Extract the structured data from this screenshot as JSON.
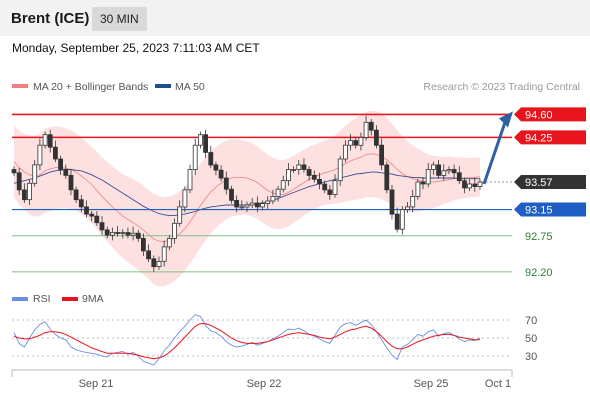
{
  "header": {
    "instrument": "Brent (ICE)",
    "timeframe": "30 MIN"
  },
  "datetime": "Monday, September 25, 2023 7:11:03 AM CET",
  "copyright": "Research © 2023 Trading Central",
  "colors": {
    "resistance": "#e8141b",
    "support": "#1f5fc4",
    "target": "#7fc07f",
    "candle_up": "#ffffff",
    "candle_down": "#333333",
    "band_fill": "#fddcdc",
    "ma20": "#f08080",
    "ma50": "#3b4a8c",
    "rsi": "#6a8fe0",
    "rsi_ma": "#e8141b",
    "arrow": "#2f5fa5",
    "current": "#333333"
  },
  "chart_data": [
    {
      "type": "candlestick",
      "title": "Brent (ICE) 30 MIN",
      "legend": [
        {
          "name": "MA 20 + Bollinger Bands",
          "color": "#f08080"
        },
        {
          "name": "MA 50",
          "color": "#1f4f8f"
        }
      ],
      "x_ticks": [
        "Sep 21",
        "Sep 22",
        "Sep 25",
        "Oct 1"
      ],
      "ylim": [
        92.0,
        94.85
      ],
      "levels": [
        {
          "value": 94.6,
          "label": "94.60",
          "kind": "resistance"
        },
        {
          "value": 94.25,
          "label": "94.25",
          "kind": "resistance"
        },
        {
          "value": 93.57,
          "label": "93.57",
          "kind": "current"
        },
        {
          "value": 93.15,
          "label": "93.15",
          "kind": "support"
        },
        {
          "value": 92.75,
          "label": "92.75",
          "kind": "target"
        },
        {
          "value": 92.2,
          "label": "92.20",
          "kind": "target"
        }
      ],
      "close": [
        93.71,
        93.45,
        93.3,
        93.55,
        93.83,
        94.13,
        94.29,
        94.1,
        93.92,
        93.76,
        93.67,
        93.45,
        93.3,
        93.19,
        93.08,
        93.05,
        92.95,
        92.84,
        92.76,
        92.8,
        92.79,
        92.8,
        92.76,
        92.79,
        92.71,
        92.52,
        92.4,
        92.28,
        92.36,
        92.58,
        92.71,
        92.94,
        93.19,
        93.45,
        93.76,
        94.13,
        94.29,
        94.02,
        93.83,
        93.75,
        93.63,
        93.46,
        93.29,
        93.19,
        93.19,
        93.22,
        93.25,
        93.19,
        93.24,
        93.28,
        93.35,
        93.46,
        93.59,
        93.76,
        93.76,
        93.83,
        93.76,
        93.67,
        93.61,
        93.54,
        93.45,
        93.38,
        93.59,
        93.92,
        94.13,
        94.2,
        94.13,
        94.25,
        94.48,
        94.36,
        94.13,
        93.83,
        93.45,
        93.08,
        92.85,
        93.15,
        93.19,
        93.35,
        93.57,
        93.54,
        93.76,
        93.83,
        93.67,
        93.74,
        93.76,
        93.71,
        93.59,
        93.48,
        93.54,
        93.5,
        93.57
      ],
      "ma20": [
        93.88,
        93.79,
        93.72,
        93.68,
        93.66,
        93.68,
        93.74,
        93.77,
        93.79,
        93.79,
        93.78,
        93.76,
        93.72,
        93.66,
        93.6,
        93.53,
        93.44,
        93.35,
        93.27,
        93.19,
        93.12,
        93.05,
        93.0,
        92.95,
        92.9,
        92.84,
        92.77,
        92.7,
        92.67,
        92.66,
        92.68,
        92.72,
        92.78,
        92.86,
        92.96,
        93.08,
        93.21,
        93.32,
        93.42,
        93.49,
        93.55,
        93.6,
        93.63,
        93.64,
        93.64,
        93.63,
        93.6,
        93.56,
        93.5,
        93.44,
        93.4,
        93.38,
        93.38,
        93.41,
        93.46,
        93.51,
        93.56,
        93.61,
        93.65,
        93.68,
        93.71,
        93.73,
        93.76,
        93.8,
        93.85,
        93.89,
        93.92,
        93.95,
        93.99,
        94.0,
        93.99,
        93.96,
        93.91,
        93.84,
        93.76,
        93.7,
        93.65,
        93.62,
        93.6,
        93.58,
        93.57,
        93.57,
        93.58,
        93.59,
        93.61,
        93.62,
        93.63,
        93.63,
        93.64,
        93.64,
        93.65
      ],
      "ma50": [
        93.55,
        93.57,
        93.59,
        93.61,
        93.63,
        93.66,
        93.69,
        93.72,
        93.74,
        93.75,
        93.76,
        93.76,
        93.75,
        93.74,
        93.71,
        93.68,
        93.64,
        93.6,
        93.55,
        93.5,
        93.45,
        93.4,
        93.35,
        93.3,
        93.25,
        93.2,
        93.16,
        93.12,
        93.09,
        93.07,
        93.06,
        93.06,
        93.07,
        93.08,
        93.1,
        93.12,
        93.15,
        93.17,
        93.19,
        93.2,
        93.21,
        93.22,
        93.22,
        93.22,
        93.22,
        93.22,
        93.23,
        93.24,
        93.25,
        93.27,
        93.29,
        93.32,
        93.35,
        93.38,
        93.41,
        93.44,
        93.47,
        93.5,
        93.52,
        93.55,
        93.57,
        93.59,
        93.61,
        93.63,
        93.65,
        93.67,
        93.69,
        93.7,
        93.71,
        93.72,
        93.72,
        93.71,
        93.7,
        93.69,
        93.67,
        93.66,
        93.65,
        93.64,
        93.64,
        93.63,
        93.63,
        93.63,
        93.63,
        93.63,
        93.63,
        93.63,
        93.62,
        93.62,
        93.62,
        93.62,
        93.62
      ],
      "band_half_width": [
        0.55,
        0.56,
        0.58,
        0.6,
        0.62,
        0.63,
        0.64,
        0.64,
        0.63,
        0.62,
        0.61,
        0.6,
        0.59,
        0.58,
        0.58,
        0.58,
        0.59,
        0.6,
        0.61,
        0.62,
        0.63,
        0.64,
        0.65,
        0.66,
        0.67,
        0.68,
        0.68,
        0.69,
        0.69,
        0.68,
        0.67,
        0.66,
        0.65,
        0.64,
        0.64,
        0.64,
        0.64,
        0.64,
        0.63,
        0.62,
        0.61,
        0.6,
        0.59,
        0.58,
        0.57,
        0.56,
        0.56,
        0.55,
        0.55,
        0.54,
        0.54,
        0.53,
        0.52,
        0.52,
        0.51,
        0.51,
        0.5,
        0.5,
        0.49,
        0.49,
        0.49,
        0.5,
        0.52,
        0.55,
        0.58,
        0.6,
        0.62,
        0.64,
        0.65,
        0.66,
        0.66,
        0.65,
        0.64,
        0.62,
        0.6,
        0.57,
        0.54,
        0.51,
        0.48,
        0.45,
        0.42,
        0.4,
        0.38,
        0.36,
        0.35,
        0.33,
        0.32,
        0.31,
        0.3,
        0.3,
        0.3
      ],
      "forecast_arrow": {
        "from": 93.57,
        "to": 94.6
      }
    },
    {
      "type": "line",
      "legend": [
        {
          "name": "RSI",
          "color": "#6a8fe0"
        },
        {
          "name": "9MA",
          "color": "#e8141b"
        }
      ],
      "y_ticks": [
        70,
        50,
        30
      ],
      "ylim": [
        20,
        80
      ],
      "rsi": [
        56,
        44,
        40,
        50,
        59,
        65,
        68,
        60,
        54,
        50,
        48,
        40,
        37,
        35,
        34,
        33,
        32,
        30,
        29,
        33,
        34,
        35,
        32,
        34,
        30,
        24,
        22,
        20,
        27,
        36,
        42,
        50,
        57,
        63,
        70,
        76,
        74,
        64,
        58,
        56,
        52,
        46,
        42,
        40,
        41,
        43,
        45,
        42,
        44,
        46,
        49,
        52,
        56,
        60,
        59,
        61,
        58,
        54,
        52,
        49,
        46,
        44,
        53,
        62,
        66,
        67,
        64,
        67,
        70,
        65,
        57,
        48,
        39,
        31,
        26,
        40,
        43,
        48,
        54,
        52,
        57,
        59,
        52,
        55,
        56,
        53,
        49,
        46,
        48,
        47,
        50
      ],
      "ma": [
        52,
        50,
        49,
        49,
        51,
        53,
        56,
        57,
        57,
        56,
        54,
        51,
        48,
        45,
        42,
        39,
        37,
        35,
        33,
        33,
        33,
        33,
        33,
        32,
        31,
        29,
        28,
        27,
        28,
        30,
        34,
        39,
        45,
        51,
        57,
        63,
        66,
        66,
        64,
        61,
        58,
        54,
        50,
        47,
        45,
        44,
        44,
        44,
        45,
        46,
        48,
        50,
        52,
        54,
        55,
        56,
        55,
        54,
        53,
        51,
        50,
        49,
        51,
        54,
        57,
        59,
        60,
        62,
        63,
        61,
        57,
        52,
        46,
        41,
        38,
        38,
        40,
        43,
        46,
        48,
        50,
        52,
        53,
        54,
        54,
        53,
        51,
        50,
        49,
        48,
        48
      ]
    }
  ]
}
